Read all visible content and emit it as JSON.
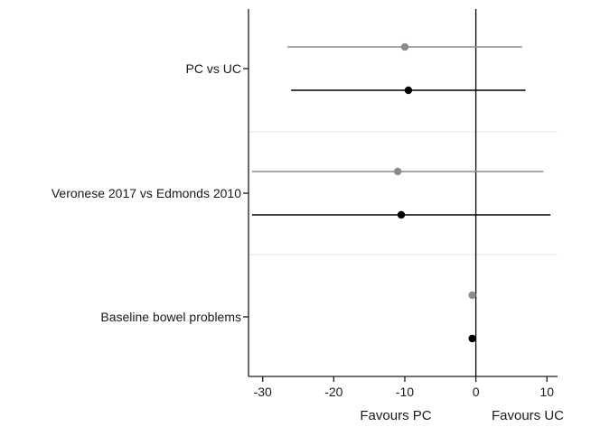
{
  "chart_data": {
    "type": "forest",
    "title": "",
    "xlabel": "",
    "ylabel": "",
    "xlim": [
      -32,
      11.5
    ],
    "xticks": [
      -30,
      -20,
      -10,
      0,
      10
    ],
    "xtick_labels": [
      "-30",
      "-20",
      "-10",
      "0",
      "10"
    ],
    "reference_line": 0,
    "favour_labels": {
      "left": "Favours PC",
      "right": "Favours UC"
    },
    "grid": false,
    "legend": "none",
    "colors": {
      "grey": "#8c8c8c",
      "black": "#000000",
      "axis": "#1a1a1a",
      "separator": "#e6e6e6"
    },
    "groups": [
      {
        "label": "PC vs UC",
        "estimates": [
          {
            "color": "grey",
            "point": -10,
            "lower": -26.5,
            "upper": 6.5
          },
          {
            "color": "black",
            "point": -9.5,
            "lower": -26,
            "upper": 7
          }
        ]
      },
      {
        "label": "Veronese 2017 vs Edmonds 2010",
        "estimates": [
          {
            "color": "grey",
            "point": -11,
            "lower": -31.5,
            "upper": 9.5
          },
          {
            "color": "black",
            "point": -10.5,
            "lower": -31.5,
            "upper": 10.5
          }
        ]
      },
      {
        "label": "Baseline bowel problems",
        "estimates": [
          {
            "color": "grey",
            "point": -0.5,
            "lower": -0.5,
            "upper": -0.5
          },
          {
            "color": "black",
            "point": -0.5,
            "lower": -0.5,
            "upper": -0.5
          }
        ]
      }
    ]
  }
}
